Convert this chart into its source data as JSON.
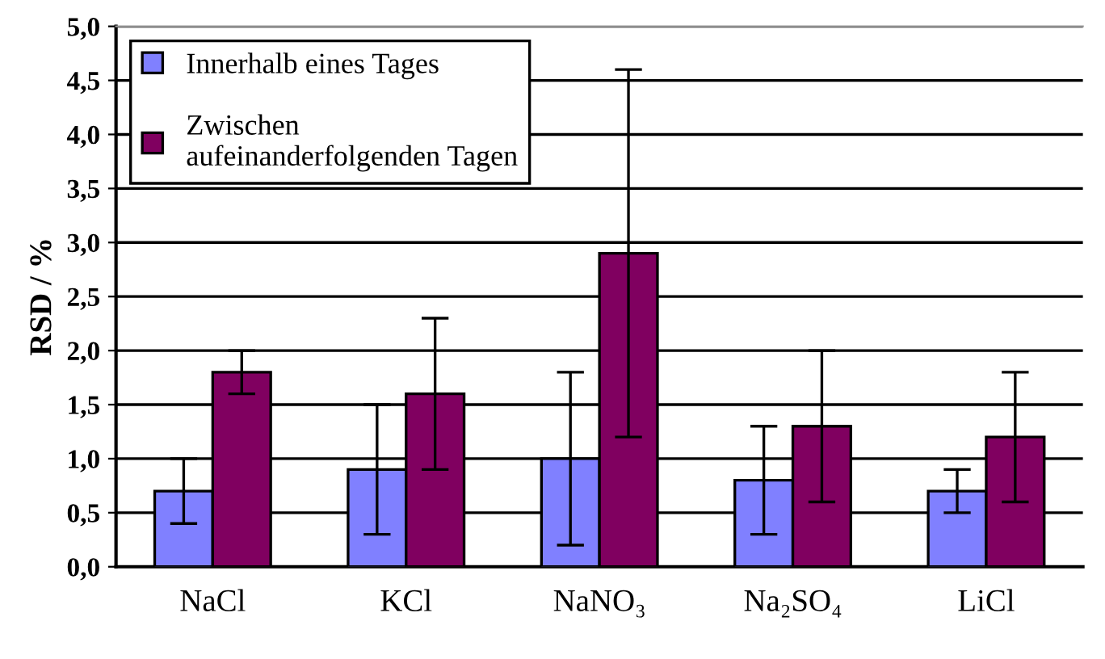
{
  "chart_data": {
    "type": "bar",
    "ylabel": "RSD / %",
    "categories": [
      "NaCl",
      "KCl",
      "NaNO₃",
      "Na₂SO₄",
      "LiCl"
    ],
    "series": [
      {
        "name": "Innerhalb eines Tages",
        "color": "#8080ff",
        "values": [
          0.7,
          0.9,
          1.0,
          0.8,
          0.7
        ],
        "errors": [
          0.3,
          0.6,
          0.8,
          0.5,
          0.2
        ]
      },
      {
        "name": "Zwischen\naufeinanderfolgenden Tagen",
        "color": "#800060",
        "values": [
          1.8,
          1.6,
          2.9,
          1.3,
          1.2
        ],
        "errors": [
          0.2,
          0.7,
          1.7,
          0.7,
          0.6
        ]
      }
    ],
    "ylim": [
      0,
      5
    ],
    "yticks": [
      {
        "value": 0,
        "label": "0,0"
      },
      {
        "value": 0.5,
        "label": "0,5"
      },
      {
        "value": 1,
        "label": "1,0"
      },
      {
        "value": 1.5,
        "label": "1,5"
      },
      {
        "value": 2,
        "label": "2,0"
      },
      {
        "value": 2.5,
        "label": "2,5"
      },
      {
        "value": 3,
        "label": "3,0"
      },
      {
        "value": 3.5,
        "label": "3,5"
      },
      {
        "value": 4,
        "label": "4,0"
      },
      {
        "value": 4.5,
        "label": "4,5"
      },
      {
        "value": 5,
        "label": "5,0"
      }
    ],
    "grid": "y",
    "legend": "top left"
  }
}
